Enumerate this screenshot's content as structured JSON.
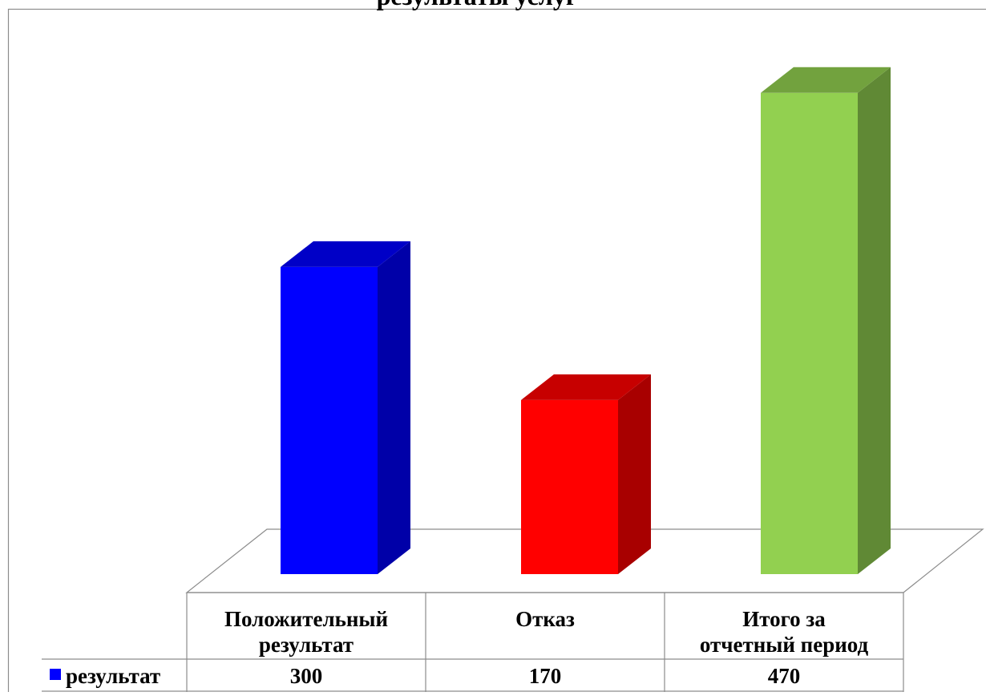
{
  "chart_data": {
    "type": "bar",
    "style": "3d-column",
    "title": "результаты услуг",
    "categories": [
      "Положительный результат",
      "Отказ",
      "Итого за отчетный период"
    ],
    "series": [
      {
        "name": "результат",
        "values": [
          300,
          170,
          470
        ],
        "colors": [
          "#0000ff",
          "#ff0000",
          "#92d050"
        ]
      }
    ],
    "legend": "left of data table",
    "data_table": true,
    "grid": false,
    "ylim": [
      0,
      500
    ]
  }
}
